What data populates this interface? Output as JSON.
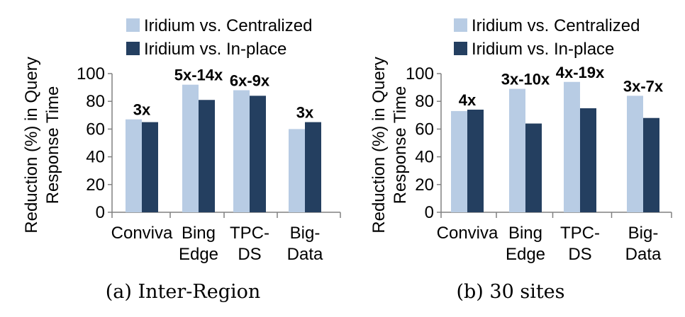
{
  "colors": {
    "centralized": "#b8cce4",
    "inplace": "#243f60",
    "axis": "#808080"
  },
  "chart_data": [
    {
      "type": "bar",
      "caption": "(a) Inter-Region",
      "ylabel": "Reduction (%) in Query Response Time",
      "ylim": [
        0,
        100
      ],
      "yticks": [
        0,
        20,
        40,
        60,
        80,
        100
      ],
      "categories": [
        [
          "Conviva"
        ],
        [
          "Bing",
          "Edge"
        ],
        [
          "TPC-",
          "DS"
        ],
        [
          "Big-",
          "Data"
        ]
      ],
      "series": [
        {
          "name": "Iridium vs. Centralized",
          "values": [
            67,
            92,
            88,
            60
          ]
        },
        {
          "name": "Iridium vs. In-place",
          "values": [
            65,
            81,
            84,
            65
          ]
        }
      ],
      "annotations": [
        "3x",
        "5x-14x",
        "6x-9x",
        "3x"
      ],
      "legend": "top"
    },
    {
      "type": "bar",
      "caption": "(b) 30 sites",
      "ylabel": "Reduction (%) in Query Response Time",
      "ylim": [
        0,
        100
      ],
      "yticks": [
        0,
        20,
        40,
        60,
        80,
        100
      ],
      "categories": [
        [
          "Conviva"
        ],
        [
          "Bing",
          "Edge"
        ],
        [
          "TPC-",
          "DS"
        ],
        [
          "Big-",
          "Data"
        ]
      ],
      "series": [
        {
          "name": "Iridium vs. Centralized",
          "values": [
            73,
            89,
            94,
            84
          ]
        },
        {
          "name": "Iridium vs. In-place",
          "values": [
            74,
            64,
            75,
            68
          ]
        }
      ],
      "annotations": [
        "4x",
        "3x-10x",
        "4x-19x",
        "3x-7x"
      ],
      "legend": "top"
    }
  ]
}
